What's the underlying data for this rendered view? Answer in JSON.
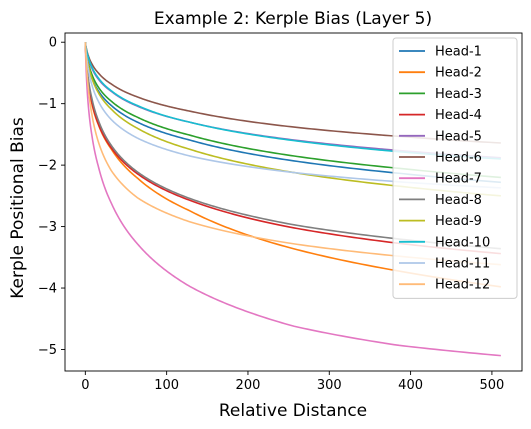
{
  "chart_data": {
    "type": "line",
    "title": "Example 2: Kerple Bias (Layer 5)",
    "xlabel": "Relative Distance",
    "ylabel": "Kerple Positional Bias",
    "xlim": [
      -25,
      537
    ],
    "ylim": [
      -5.35,
      0.15
    ],
    "xticks": [
      0,
      100,
      200,
      300,
      400,
      500
    ],
    "yticks": [
      0,
      -1,
      -2,
      -3,
      -4,
      -5
    ],
    "grid": false,
    "legend_position": "top-right",
    "x": [
      0,
      1,
      2,
      4,
      8,
      16,
      32,
      64,
      128,
      256,
      384,
      511
    ],
    "series": [
      {
        "name": "Head-1",
        "color": "#1f77b4",
        "values": [
          0,
          -0.16,
          -0.26,
          -0.4,
          -0.58,
          -0.79,
          -1.03,
          -1.3,
          -1.59,
          -1.93,
          -2.13,
          -2.28
        ]
      },
      {
        "name": "Head-2",
        "color": "#ff7f0e",
        "values": [
          0,
          -0.3,
          -0.48,
          -0.71,
          -1.0,
          -1.34,
          -1.74,
          -2.21,
          -2.74,
          -3.36,
          -3.72,
          -3.98
        ]
      },
      {
        "name": "Head-3",
        "color": "#2ca02c",
        "values": [
          0,
          -0.13,
          -0.22,
          -0.35,
          -0.52,
          -0.73,
          -0.96,
          -1.22,
          -1.51,
          -1.85,
          -2.05,
          -2.2
        ]
      },
      {
        "name": "Head-4",
        "color": "#d62728",
        "values": [
          0,
          -0.27,
          -0.44,
          -0.67,
          -0.97,
          -1.33,
          -1.72,
          -2.14,
          -2.57,
          -3.02,
          -3.27,
          -3.44
        ]
      },
      {
        "name": "Head-5",
        "color": "#9467bd",
        "values": [
          0,
          -0.1,
          -0.17,
          -0.28,
          -0.42,
          -0.6,
          -0.8,
          -1.04,
          -1.3,
          -1.59,
          -1.76,
          -1.88
        ]
      },
      {
        "name": "Head-6",
        "color": "#8c564b",
        "values": [
          0,
          -0.08,
          -0.14,
          -0.23,
          -0.35,
          -0.5,
          -0.68,
          -0.89,
          -1.12,
          -1.38,
          -1.53,
          -1.64
        ]
      },
      {
        "name": "Head-7",
        "color": "#e377c2",
        "values": [
          0,
          -0.45,
          -0.72,
          -1.08,
          -1.51,
          -2.02,
          -2.62,
          -3.28,
          -3.97,
          -4.62,
          -4.93,
          -5.1
        ]
      },
      {
        "name": "Head-8",
        "color": "#7f7f7f",
        "values": [
          0,
          -0.24,
          -0.4,
          -0.62,
          -0.91,
          -1.27,
          -1.68,
          -2.11,
          -2.54,
          -2.97,
          -3.2,
          -3.36
        ]
      },
      {
        "name": "Head-9",
        "color": "#bcbd22",
        "values": [
          0,
          -0.14,
          -0.24,
          -0.38,
          -0.58,
          -0.82,
          -1.09,
          -1.4,
          -1.74,
          -2.12,
          -2.34,
          -2.5
        ]
      },
      {
        "name": "Head-10",
        "color": "#17becf",
        "values": [
          0,
          -0.09,
          -0.16,
          -0.26,
          -0.4,
          -0.58,
          -0.79,
          -1.03,
          -1.3,
          -1.6,
          -1.78,
          -1.9
        ]
      },
      {
        "name": "Head-11",
        "color": "#aec7e8",
        "values": [
          0,
          -0.17,
          -0.29,
          -0.46,
          -0.69,
          -0.96,
          -1.26,
          -1.56,
          -1.85,
          -2.12,
          -2.27,
          -2.37
        ]
      },
      {
        "name": "Head-12",
        "color": "#ffbb78",
        "values": [
          0,
          -0.3,
          -0.5,
          -0.79,
          -1.17,
          -1.62,
          -2.09,
          -2.53,
          -2.92,
          -3.28,
          -3.48,
          -3.62
        ]
      }
    ]
  }
}
